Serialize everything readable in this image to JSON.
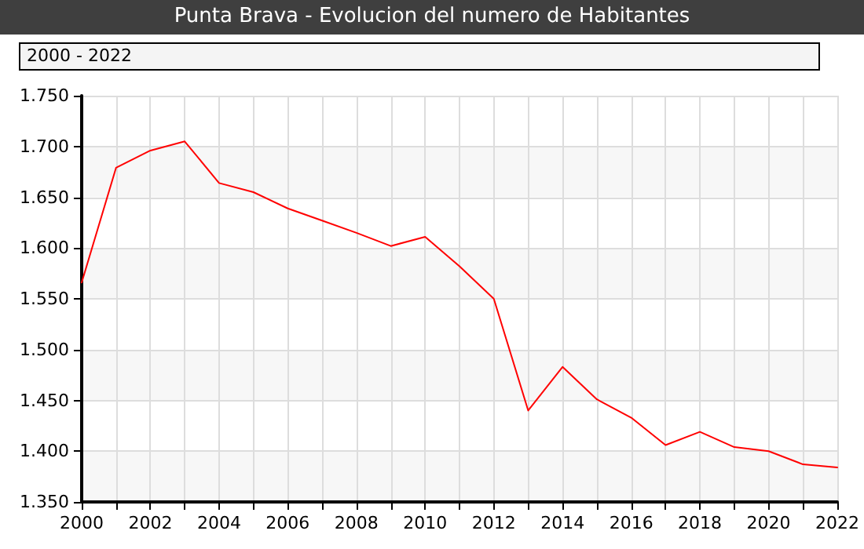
{
  "chart_data": {
    "type": "line",
    "title": "Punta Brava - Evolucion del numero de Habitantes",
    "subtitle": "2000 - 2022",
    "x": [
      2000,
      2001,
      2002,
      2003,
      2004,
      2005,
      2006,
      2007,
      2008,
      2009,
      2010,
      2011,
      2012,
      2013,
      2014,
      2015,
      2016,
      2017,
      2018,
      2019,
      2020,
      2021,
      2022
    ],
    "series": [
      {
        "color": "#ff0000",
        "values": [
          1566,
          1679,
          1696,
          1705,
          1664,
          1655,
          1639,
          1627,
          1615,
          1602,
          1611,
          1582,
          1550,
          1440,
          1483,
          1451,
          1433,
          1406,
          1419,
          1404,
          1400,
          1387,
          1384
        ]
      }
    ],
    "xlim": [
      2000,
      2022
    ],
    "xticks": [
      2000,
      {
        "value": 2001,
        "label": null
      },
      2002,
      {
        "value": 2003,
        "label": null
      },
      2004,
      {
        "value": 2005,
        "label": null
      },
      2006,
      {
        "value": 2007,
        "label": null
      },
      2008,
      {
        "value": 2009,
        "label": null
      },
      2010,
      {
        "value": 2011,
        "label": null
      },
      2012,
      {
        "value": 2013,
        "label": null
      },
      2014,
      {
        "value": 2015,
        "label": null
      },
      2016,
      {
        "value": 2017,
        "label": null
      },
      2018,
      {
        "value": 2019,
        "label": null
      },
      2020,
      {
        "value": 2021,
        "label": null
      },
      2022
    ],
    "ylim": [
      1350,
      1750
    ],
    "yticks": [
      {
        "value": 1350,
        "label": "1.350"
      },
      {
        "value": 1400,
        "label": "1.400"
      },
      {
        "value": 1450,
        "label": "1.450"
      },
      {
        "value": 1500,
        "label": "1.500"
      },
      {
        "value": 1550,
        "label": "1.550"
      },
      {
        "value": 1600,
        "label": "1.600"
      },
      {
        "value": 1650,
        "label": "1.650"
      },
      {
        "value": 1700,
        "label": "1.700"
      },
      {
        "value": 1750,
        "label": "1.750"
      }
    ],
    "grid": true,
    "marker": "none",
    "line_style": "solid"
  }
}
